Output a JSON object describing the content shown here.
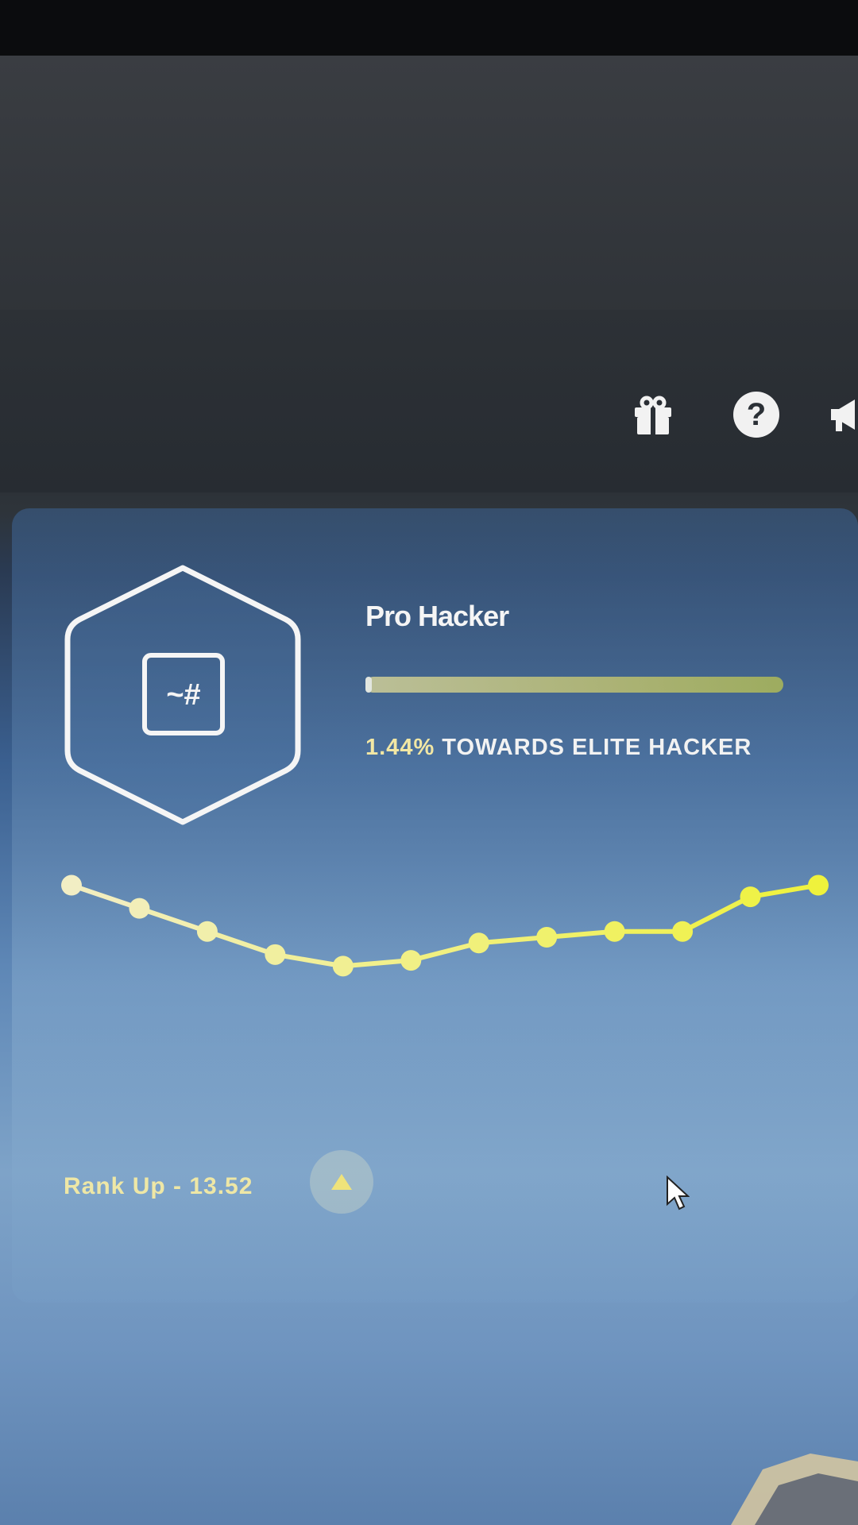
{
  "header": {
    "icons": [
      "gift-icon",
      "help-icon",
      "megaphone-icon"
    ],
    "help_glyph": "?",
    "notification_color": "#e0533b"
  },
  "rank": {
    "badge_text": "~#",
    "title": "Pro Hacker",
    "progress_percent": 1.44,
    "progress_pct_label": "1.44%",
    "progress_label_rest": " TOWARDS ELITE HACKER",
    "accent": "#eef06a"
  },
  "chart_data": {
    "type": "line",
    "values": [
      30,
      26,
      22,
      18,
      16,
      17,
      20,
      21,
      22,
      22,
      28,
      30
    ],
    "ylim": [
      10,
      32
    ],
    "grid": false
  },
  "footer": {
    "rank_up_label": "Rank Up - 13.52"
  }
}
